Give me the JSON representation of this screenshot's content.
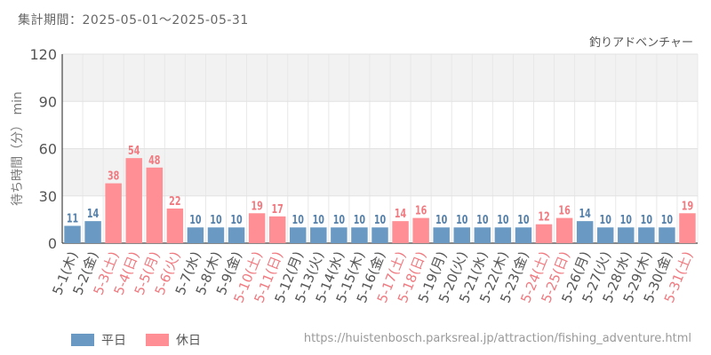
{
  "header": {
    "period_label": "集計期間：2025-05-01～2025-05-31"
  },
  "chart_data": {
    "type": "bar",
    "title": "釣りアドベンチャー",
    "ylabel": "待ち時間（分） min",
    "ylim": [
      0,
      120
    ],
    "yticks": [
      0,
      30,
      60,
      90,
      120
    ],
    "grid": true,
    "categories": [
      "5-1(木)",
      "5-2(金)",
      "5-3(土)",
      "5-4(日)",
      "5-5(月)",
      "5-6(火)",
      "5-7(水)",
      "5-8(木)",
      "5-9(金)",
      "5-10(土)",
      "5-11(日)",
      "5-12(月)",
      "5-13(火)",
      "5-14(水)",
      "5-15(木)",
      "5-16(金)",
      "5-17(土)",
      "5-18(日)",
      "5-19(月)",
      "5-20(火)",
      "5-21(水)",
      "5-22(木)",
      "5-23(金)",
      "5-24(土)",
      "5-25(日)",
      "5-26(月)",
      "5-27(火)",
      "5-28(水)",
      "5-29(木)",
      "5-30(金)",
      "5-31(土)"
    ],
    "values": [
      11,
      14,
      38,
      54,
      48,
      22,
      10,
      10,
      10,
      19,
      17,
      10,
      10,
      10,
      10,
      10,
      14,
      16,
      10,
      10,
      10,
      10,
      10,
      12,
      16,
      14,
      10,
      10,
      10,
      10,
      19
    ],
    "day_type": [
      "weekday",
      "weekday",
      "holiday",
      "holiday",
      "holiday",
      "holiday",
      "weekday",
      "weekday",
      "weekday",
      "holiday",
      "holiday",
      "weekday",
      "weekday",
      "weekday",
      "weekday",
      "weekday",
      "holiday",
      "holiday",
      "weekday",
      "weekday",
      "weekday",
      "weekday",
      "weekday",
      "holiday",
      "holiday",
      "weekday",
      "weekday",
      "weekday",
      "weekday",
      "weekday",
      "holiday"
    ],
    "legend": [
      {
        "key": "weekday",
        "label": "平日",
        "color": "#6a9ac4"
      },
      {
        "key": "holiday",
        "label": "休日",
        "color": "#ff8f94"
      }
    ],
    "legend_position": "bottom-left",
    "colors": {
      "weekday_bar": "#6a9ac4",
      "holiday_bar": "#ff8f94",
      "weekday_text": "#5580aa",
      "holiday_text": "#f07a80",
      "axis_text": "#555555"
    }
  },
  "footer": {
    "source_url": "https://huistenbosch.parksreal.jp/attraction/fishing_adventure.html"
  }
}
